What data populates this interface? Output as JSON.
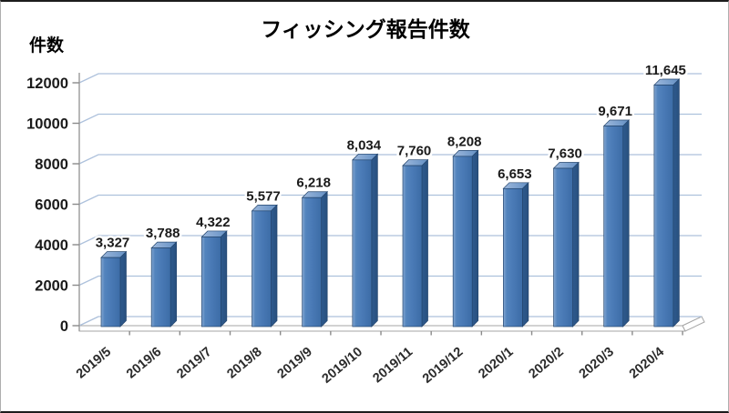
{
  "chart_data": {
    "type": "bar",
    "style": "3d-clustered-column",
    "title": "フィッシング報告件数",
    "ylabel": "件数",
    "xlabel": "",
    "legend": "none",
    "grid": true,
    "categories": [
      "2019/5",
      "2019/6",
      "2019/7",
      "2019/8",
      "2019/9",
      "2019/10",
      "2019/11",
      "2019/12",
      "2020/1",
      "2020/2",
      "2020/3",
      "2020/4"
    ],
    "values": [
      3327,
      3788,
      4322,
      5577,
      6218,
      8034,
      7760,
      8208,
      6653,
      7630,
      9671,
      11645
    ],
    "value_labels": [
      "3,327",
      "3,788",
      "4,322",
      "5,577",
      "6,218",
      "8,034",
      "7,760",
      "8,208",
      "6,653",
      "7,630",
      "9,671",
      "11,645"
    ],
    "y_ticks": [
      0,
      2000,
      4000,
      6000,
      8000,
      10000,
      12000
    ],
    "ylim": [
      0,
      12000
    ],
    "colors": {
      "bar_front": "#4a7ab6",
      "bar_front_light": "#84a7d2",
      "bar_front_dark": "#3c6ca6",
      "bar_side": "#2e5a8e",
      "bar_side_dark": "#29507e",
      "bar_top": "#6490c4",
      "bar_top_light": "#9db8dc",
      "bar_outline": "#24466e",
      "gridline": "#adc1dc",
      "axis": "#9a9a9a",
      "text": "#1a1a1a",
      "category_text": "#2b2b2b"
    }
  }
}
